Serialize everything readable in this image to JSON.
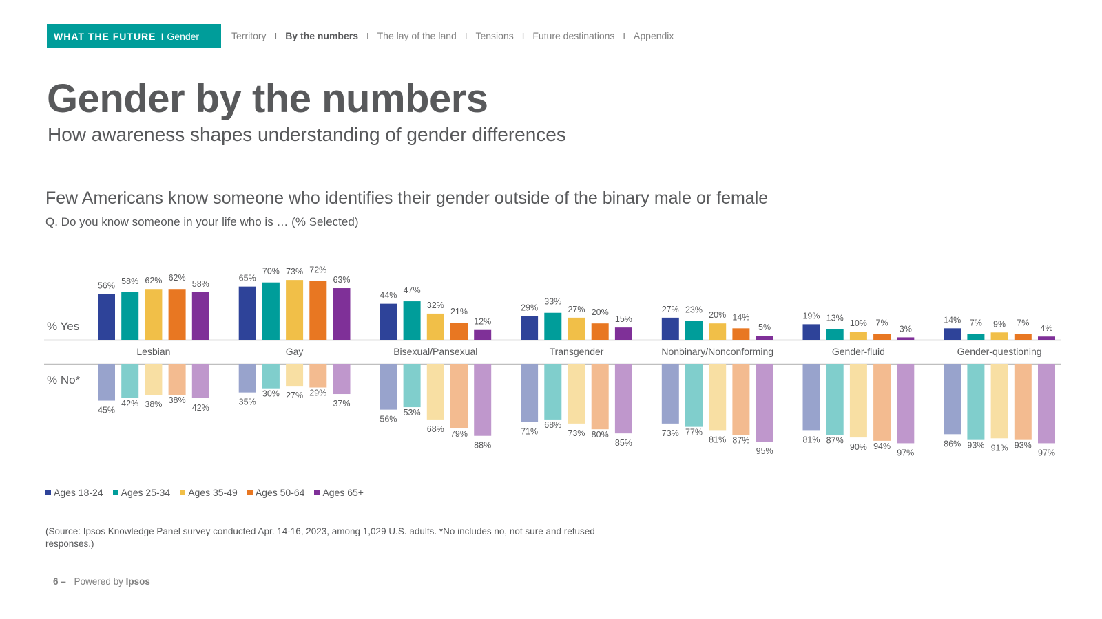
{
  "header": {
    "brand": "WHAT THE FUTURE",
    "divider": "I",
    "section": "Gender",
    "nav": [
      {
        "label": "Territory",
        "active": false
      },
      {
        "label": "By the numbers",
        "active": true
      },
      {
        "label": "The lay of the land",
        "active": false
      },
      {
        "label": "Tensions",
        "active": false
      },
      {
        "label": "Future destinations",
        "active": false
      },
      {
        "label": "Appendix",
        "active": false
      }
    ],
    "nav_separator": "I"
  },
  "title": "Gender by the numbers",
  "subtitle": "How awareness shapes understanding of gender differences",
  "headline": "Few Americans know someone who identifies their gender outside of the binary male or female",
  "question": "Q. Do you know someone in your life who is … (% Selected)",
  "chart_data": {
    "type": "bar",
    "yes_label": "% Yes",
    "no_label": "% No*",
    "categories": [
      "Lesbian",
      "Gay",
      "Bisexual/Pansexual",
      "Transgender",
      "Nonbinary/Nonconforming",
      "Gender-fluid",
      "Gender-questioning"
    ],
    "series": [
      {
        "name": "Ages 18-24",
        "color": "#2e4399",
        "no_color": "#98a3cc",
        "yes": [
          56,
          65,
          44,
          29,
          27,
          19,
          14
        ],
        "no": [
          45,
          35,
          56,
          71,
          73,
          81,
          86
        ]
      },
      {
        "name": "Ages 25-34",
        "color": "#009d9a",
        "no_color": "#80cecc",
        "yes": [
          58,
          70,
          47,
          33,
          23,
          13,
          7
        ],
        "no": [
          42,
          30,
          53,
          68,
          77,
          87,
          93
        ]
      },
      {
        "name": "Ages 35-49",
        "color": "#f1bf48",
        "no_color": "#f8dfa3",
        "yes": [
          62,
          73,
          32,
          27,
          20,
          10,
          9
        ],
        "no": [
          38,
          27,
          68,
          73,
          81,
          90,
          91
        ]
      },
      {
        "name": "Ages 50-64",
        "color": "#e87722",
        "no_color": "#f3bb90",
        "yes": [
          62,
          72,
          21,
          20,
          14,
          7,
          7
        ],
        "no": [
          38,
          29,
          79,
          80,
          87,
          94,
          93
        ]
      },
      {
        "name": "Ages 65+",
        "color": "#7f3098",
        "no_color": "#bf97cc",
        "yes": [
          58,
          63,
          12,
          15,
          5,
          3,
          4
        ],
        "no": [
          42,
          37,
          88,
          85,
          95,
          97,
          97
        ]
      }
    ],
    "value_suffix": "%",
    "legend_position": "bottom-left"
  },
  "source": "(Source: Ipsos Knowledge Panel survey conducted Apr. 14-16, 2023, among 1,029 U.S. adults. *No includes no, not sure and refused responses.)",
  "footer": {
    "page_number": "6 –",
    "powered_by": "Powered by",
    "company": "Ipsos"
  }
}
